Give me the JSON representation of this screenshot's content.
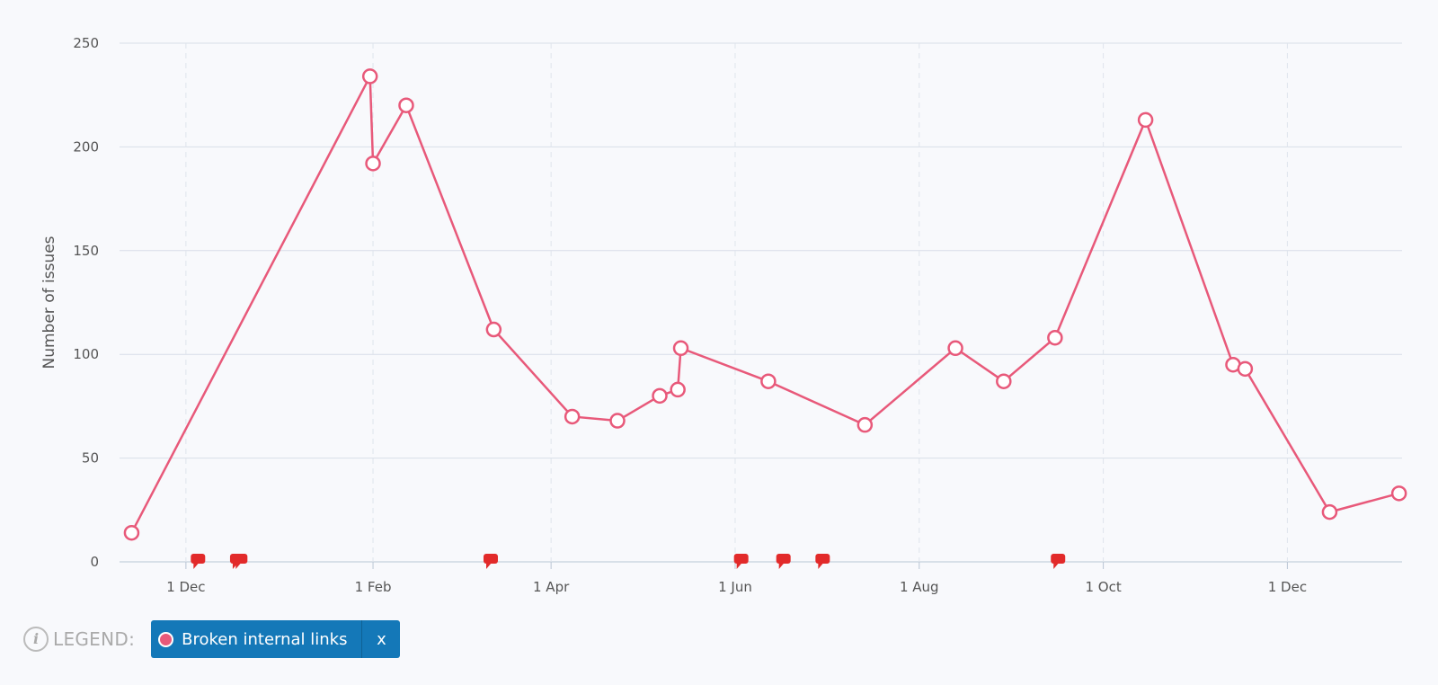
{
  "chart_data": {
    "type": "line",
    "ylabel": "Number of issues",
    "ylim": [
      0,
      250
    ],
    "yticks": [
      0,
      50,
      100,
      150,
      200,
      250
    ],
    "xlim": [
      "2016-11-09",
      "2018-01-08"
    ],
    "xticks": [
      {
        "date": "2016-12-01",
        "label": "1 Dec"
      },
      {
        "date": "2017-02-01",
        "label": "1 Feb"
      },
      {
        "date": "2017-04-01",
        "label": "1 Apr"
      },
      {
        "date": "2017-06-01",
        "label": "1 Jun"
      },
      {
        "date": "2017-08-01",
        "label": "1 Aug"
      },
      {
        "date": "2017-10-01",
        "label": "1 Oct"
      },
      {
        "date": "2017-12-01",
        "label": "1 Dec"
      }
    ],
    "grid": true,
    "series": [
      {
        "name": "Broken internal links",
        "color": "#e8597a",
        "points": [
          {
            "x": "2016-11-13",
            "y": 14
          },
          {
            "x": "2017-01-31",
            "y": 234
          },
          {
            "x": "2017-02-01",
            "y": 192
          },
          {
            "x": "2017-02-12",
            "y": 220
          },
          {
            "x": "2017-03-13",
            "y": 112
          },
          {
            "x": "2017-04-08",
            "y": 70
          },
          {
            "x": "2017-04-23",
            "y": 68
          },
          {
            "x": "2017-05-07",
            "y": 80
          },
          {
            "x": "2017-05-13",
            "y": 83
          },
          {
            "x": "2017-05-14",
            "y": 103
          },
          {
            "x": "2017-06-12",
            "y": 87
          },
          {
            "x": "2017-07-14",
            "y": 66
          },
          {
            "x": "2017-08-13",
            "y": 103
          },
          {
            "x": "2017-08-29",
            "y": 87
          },
          {
            "x": "2017-09-15",
            "y": 108
          },
          {
            "x": "2017-10-15",
            "y": 213
          },
          {
            "x": "2017-11-13",
            "y": 95
          },
          {
            "x": "2017-11-17",
            "y": 93
          },
          {
            "x": "2017-12-15",
            "y": 24
          },
          {
            "x": "2018-01-07",
            "y": 33
          }
        ]
      }
    ],
    "annotation_markers": {
      "color": "#e22a2a",
      "dates": [
        "2016-12-05",
        "2016-12-18",
        "2016-12-19",
        "2017-03-12",
        "2017-06-03",
        "2017-06-17",
        "2017-06-30",
        "2017-09-16"
      ]
    }
  },
  "legend": {
    "info_icon": "info-icon",
    "label": "LEGEND:",
    "series_label": "Broken internal links",
    "close_label": "x"
  }
}
